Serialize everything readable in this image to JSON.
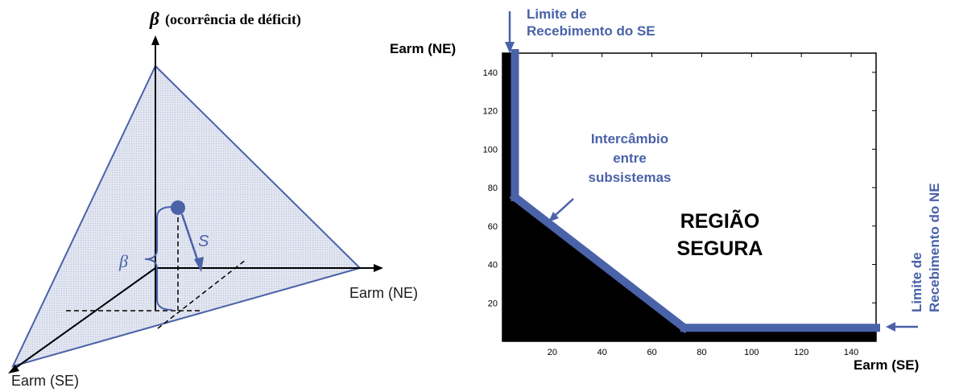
{
  "left_diagram": {
    "beta_symbol": "β",
    "beta_title": "(ocorrência de déficit)",
    "axis_ne_label": "Earm (NE)",
    "axis_se_label": "Earm (SE)",
    "vector_label": "S",
    "bracket_label": "β",
    "colors": {
      "plane_stroke": "#4a62a8",
      "plane_fill": "#dfe3ef",
      "accent": "#4a62a8"
    }
  },
  "right_diagram": {
    "y_axis_label": "Earm (NE)",
    "x_axis_label": "Earm (SE)",
    "annotation_top_line1": "Limite de",
    "annotation_top_line2": "Recebimento do SE",
    "annotation_mid_line1": "Intercâmbio",
    "annotation_mid_line2": "entre",
    "annotation_mid_line3": "subsistemas",
    "annotation_right_line1": "Limite de",
    "annotation_right_line2": "Recebimento do NE",
    "region_line1": "REGIÃO",
    "region_line2": "SEGURA",
    "colors": {
      "boundary": "#4a62a8",
      "infeasible": "#000000"
    }
  },
  "chart_data": {
    "type": "area",
    "xlabel": "Earm (SE)",
    "ylabel": "Earm (NE)",
    "xlim": [
      0,
      150
    ],
    "ylim": [
      0,
      150
    ],
    "x_ticks": [
      20,
      40,
      60,
      80,
      100,
      120,
      140
    ],
    "y_ticks": [
      20,
      40,
      60,
      80,
      100,
      120,
      140
    ],
    "boundary_points": [
      {
        "x": 5,
        "y": 150
      },
      {
        "x": 5,
        "y": 75
      },
      {
        "x": 73,
        "y": 7
      },
      {
        "x": 150,
        "y": 7
      }
    ],
    "annotations": [
      "Limite de Recebimento do SE",
      "Intercâmbio entre subsistemas",
      "Limite de Recebimento do NE",
      "REGIÃO SEGURA"
    ]
  }
}
